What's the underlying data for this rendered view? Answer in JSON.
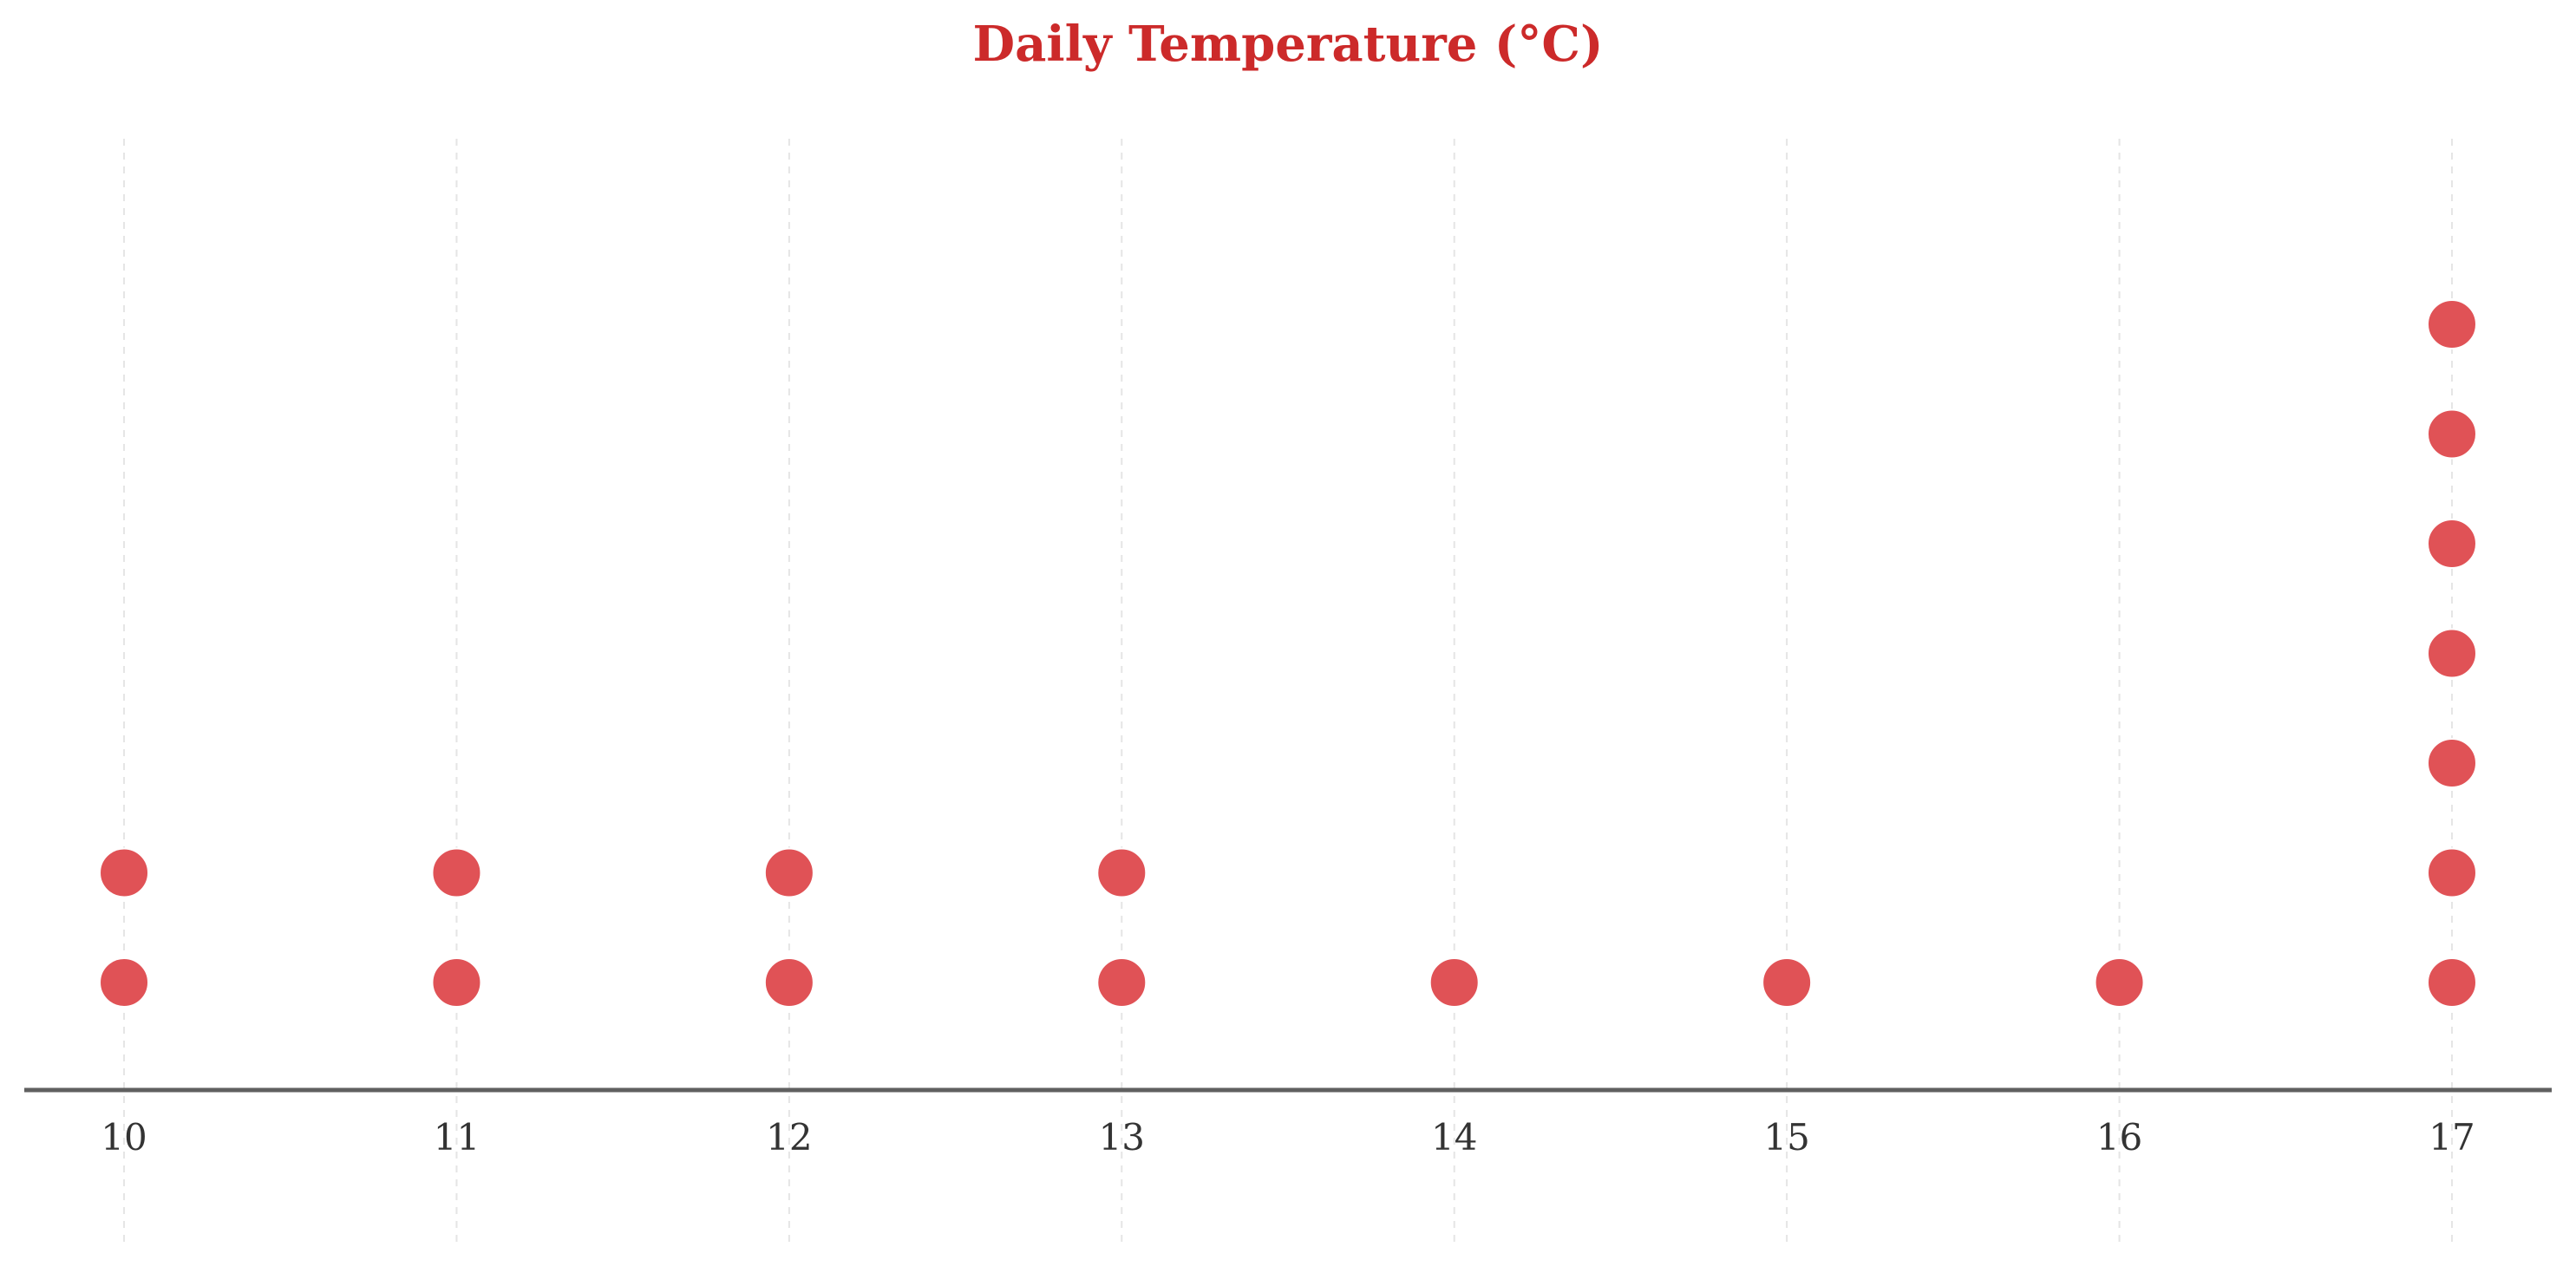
{
  "chart_data": {
    "type": "scatter",
    "subtype": "dot-plot",
    "title": "Daily Temperature (°C)",
    "xlabel": "",
    "ylabel": "",
    "xlim": [
      9.7,
      17.3
    ],
    "x_ticks": [
      10,
      11,
      12,
      13,
      14,
      15,
      16,
      17
    ],
    "values": [
      10,
      10,
      11,
      11,
      12,
      12,
      13,
      13,
      14,
      15,
      16,
      17,
      17,
      17,
      17,
      17,
      17,
      17
    ],
    "counts": [
      {
        "x": 10,
        "count": 2
      },
      {
        "x": 11,
        "count": 2
      },
      {
        "x": 12,
        "count": 2
      },
      {
        "x": 13,
        "count": 2
      },
      {
        "x": 14,
        "count": 1
      },
      {
        "x": 15,
        "count": 1
      },
      {
        "x": 16,
        "count": 1
      },
      {
        "x": 17,
        "count": 7
      }
    ],
    "grid": "vertical-dashed",
    "y_axis_visible": false,
    "legend": "none",
    "colors": {
      "title": "#cc2a2a",
      "dot": "#e05256",
      "axis": "#606060",
      "grid": "#d4d4d4",
      "tick_label": "#333333"
    }
  }
}
